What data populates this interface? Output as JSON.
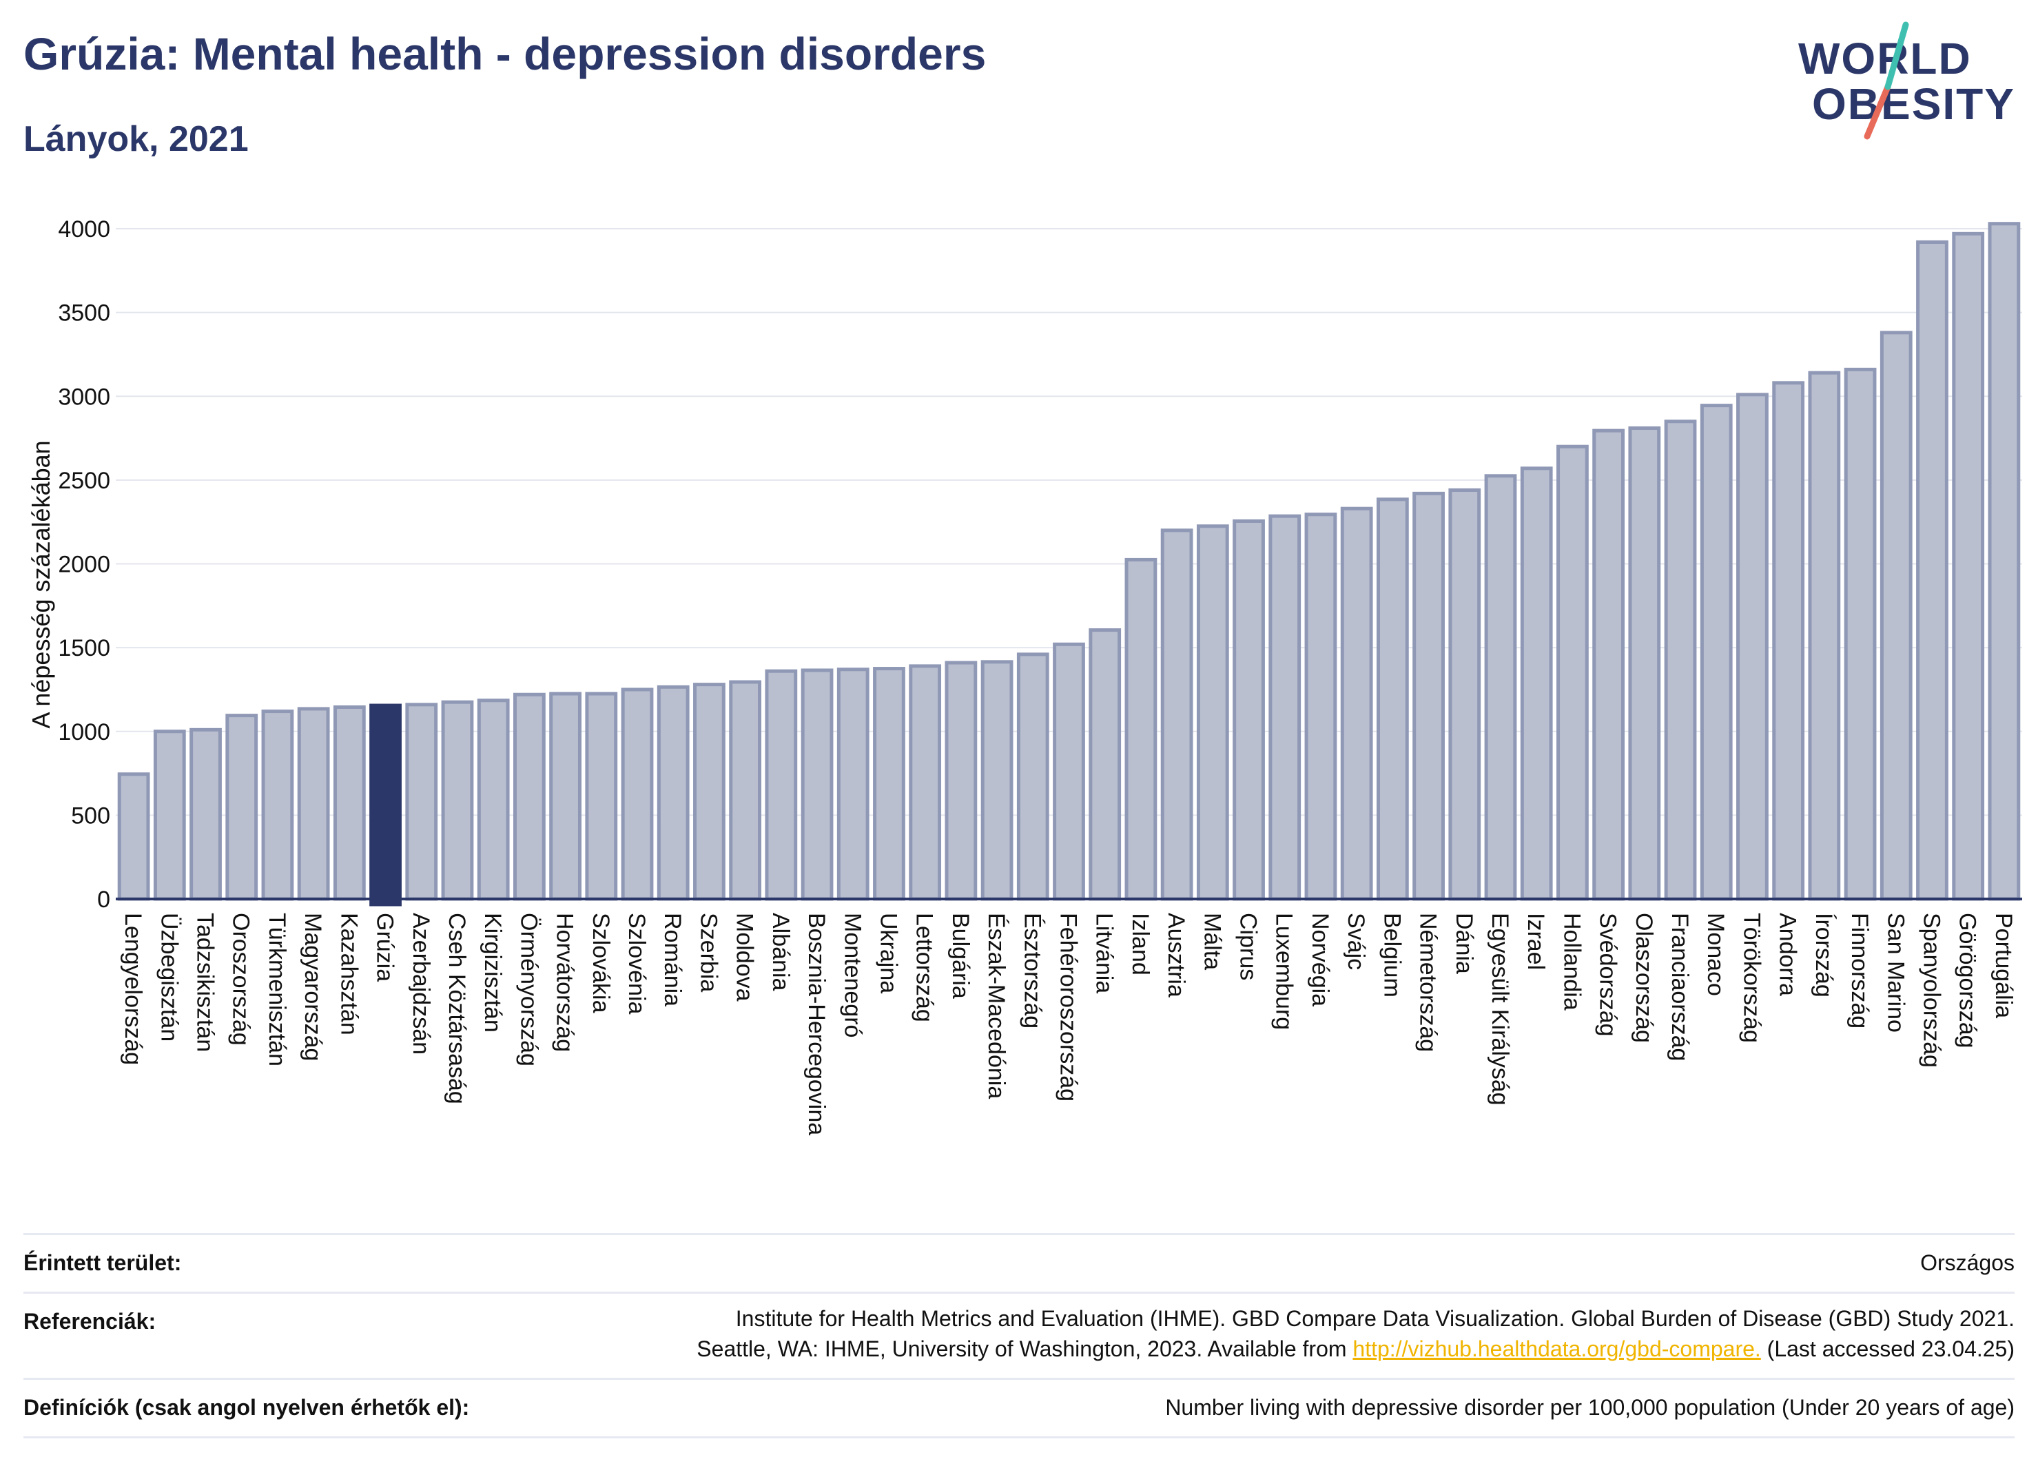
{
  "header": {
    "title": "Grúzia: Mental health - depression disorders",
    "subtitle": "Lányok, 2021",
    "logo_line1": "WORLD",
    "logo_line2": "OBESITY"
  },
  "colors": {
    "bar": "#b9bfcf",
    "bar_border": "#8f98b5",
    "highlight": "#2b3768",
    "accent_teal": "#3fbfb0",
    "accent_coral": "#e86b5a",
    "link": "#f0b400"
  },
  "chart_data": {
    "type": "bar",
    "title": "",
    "ylabel": "A népesség százalékában",
    "xlabel": "",
    "ylim": [
      0,
      4100
    ],
    "yticks": [
      0,
      500,
      1000,
      1500,
      2000,
      2500,
      3000,
      3500,
      4000
    ],
    "grid": true,
    "highlight": "Grúzia",
    "categories": [
      "Lengyelország",
      "Üzbegisztán",
      "Tadzsikisztán",
      "Oroszország",
      "Türkmenisztán",
      "Magyarország",
      "Kazahsztán",
      "Grúzia",
      "Azerbajdzsán",
      "Cseh Köztársaság",
      "Kirgizisztán",
      "Örményország",
      "Horvátország",
      "Szlovákia",
      "Szlovénia",
      "Románia",
      "Szerbia",
      "Moldova",
      "Albánia",
      "Bosznia-Hercegovina",
      "Montenegró",
      "Ukrajna",
      "Lettország",
      "Bulgária",
      "Észak-Macedónia",
      "Észtország",
      "Fehéroroszország",
      "Litvánia",
      "Izland",
      "Ausztria",
      "Málta",
      "Ciprus",
      "Luxemburg",
      "Norvégia",
      "Svájc",
      "Belgium",
      "Németország",
      "Dánia",
      "Egyesült Királyság",
      "Izrael",
      "Hollandia",
      "Svédország",
      "Olaszország",
      "Franciaország",
      "Monaco",
      "Törökország",
      "Andorra",
      "Írország",
      "Finnország",
      "San Marino",
      "Spanyolország",
      "Görögország",
      "Portugália"
    ],
    "values": [
      745,
      1000,
      1010,
      1095,
      1120,
      1135,
      1145,
      1155,
      1160,
      1175,
      1185,
      1220,
      1225,
      1225,
      1250,
      1265,
      1280,
      1295,
      1360,
      1365,
      1370,
      1375,
      1390,
      1410,
      1415,
      1460,
      1520,
      1605,
      2025,
      2200,
      2225,
      2255,
      2285,
      2295,
      2330,
      2385,
      2420,
      2440,
      2525,
      2570,
      2700,
      2795,
      2810,
      2850,
      2945,
      3010,
      3080,
      3140,
      3160,
      3380,
      3920,
      3970,
      4030
    ]
  },
  "footer": {
    "area_label": "Érintett terület:",
    "area_value": "Országos",
    "ref_label": "Referenciák:",
    "ref_line1": "Institute for Health Metrics and Evaluation (IHME). GBD Compare Data Visualization. Global Burden of Disease (GBD) Study 2021.",
    "ref_line2_pre": "Seattle, WA: IHME, University of Washington, 2023. Available from ",
    "ref_link": "http://vizhub.healthdata.org/gbd-compare.",
    "ref_line2_post": " (Last accessed 23.04.25)",
    "def_label": "Definíciók (csak angol nyelven érhetők el):",
    "def_value": "Number living with depressive disorder per 100,000 population (Under 20 years of age)"
  }
}
